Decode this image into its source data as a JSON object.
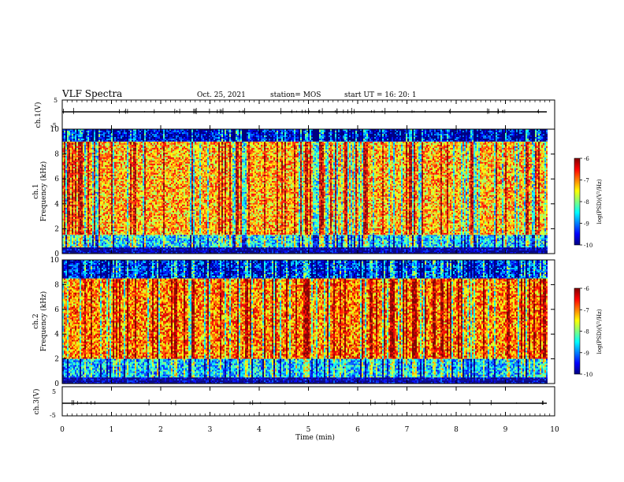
{
  "header": {
    "title": "VLF Spectra",
    "date": "Oct. 25, 2021",
    "station": "station= MOS",
    "start": "start  UT =   16: 20: 1"
  },
  "chart_data": [
    {
      "type": "line",
      "panel": "ch1-waveform",
      "ylabel": "ch.1(V)",
      "ylim": [
        -5,
        5
      ],
      "y_ticks": [
        "5",
        "-5"
      ],
      "series": [
        {
          "x_min": [
            0,
            9.85
          ],
          "values_V": [
            0,
            0
          ]
        }
      ]
    },
    {
      "type": "heatmap",
      "panel": "ch1-spectrogram",
      "ylabel": "Frequency  (kHz)",
      "ylabel_prefix": "ch.1",
      "ylim": [
        0,
        10
      ],
      "y_ticks": [
        "0",
        "2",
        "4",
        "6",
        "8",
        "10"
      ],
      "xlim": [
        0,
        10
      ],
      "data_extent_min": 9.85,
      "colorbar": {
        "label": "log(PSD)(V²/Hz)",
        "range": [
          -10,
          -6
        ],
        "ticks": [
          "-6",
          "-7",
          "-8",
          "-9",
          "-10"
        ]
      },
      "bands": [
        {
          "f_kHz": [
            0,
            0.5
          ],
          "log_psd": -10
        },
        {
          "f_kHz": [
            0.5,
            1.5
          ],
          "log_psd": -8.6
        },
        {
          "f_kHz": [
            1.5,
            9.0
          ],
          "log_psd": -7.2
        },
        {
          "f_kHz": [
            9.0,
            10
          ],
          "log_psd": -9.6
        }
      ]
    },
    {
      "type": "heatmap",
      "panel": "ch2-spectrogram",
      "ylabel": "Frequency  (kHz)",
      "ylabel_prefix": "ch.2",
      "ylim": [
        0,
        10
      ],
      "y_ticks": [
        "0",
        "2",
        "4",
        "6",
        "8",
        "10"
      ],
      "xlim": [
        0,
        10
      ],
      "data_extent_min": 9.85,
      "colorbar": {
        "label": "log(PSD)(V²/Hz)",
        "range": [
          -10,
          -6
        ],
        "ticks": [
          "-6",
          "-7",
          "-8",
          "-9",
          "-10"
        ]
      },
      "bands": [
        {
          "f_kHz": [
            0,
            0.5
          ],
          "log_psd": -10
        },
        {
          "f_kHz": [
            0.5,
            2.0
          ],
          "log_psd": -8.7
        },
        {
          "f_kHz": [
            2.0,
            8.5
          ],
          "log_psd": -7.0
        },
        {
          "f_kHz": [
            8.5,
            10
          ],
          "log_psd": -9.4
        }
      ]
    },
    {
      "type": "line",
      "panel": "ch3-waveform",
      "ylabel": "ch.3(V)",
      "xlabel": "Time  (min)",
      "ylim": [
        -5,
        5
      ],
      "y_ticks": [
        "5",
        "-5"
      ],
      "x_ticks": [
        "0",
        "1",
        "2",
        "3",
        "4",
        "5",
        "6",
        "7",
        "8",
        "9",
        "10"
      ],
      "xlim": [
        0,
        10
      ],
      "series": [
        {
          "x_min": [
            0,
            9.85
          ],
          "values_V": [
            0,
            0
          ]
        }
      ]
    }
  ]
}
